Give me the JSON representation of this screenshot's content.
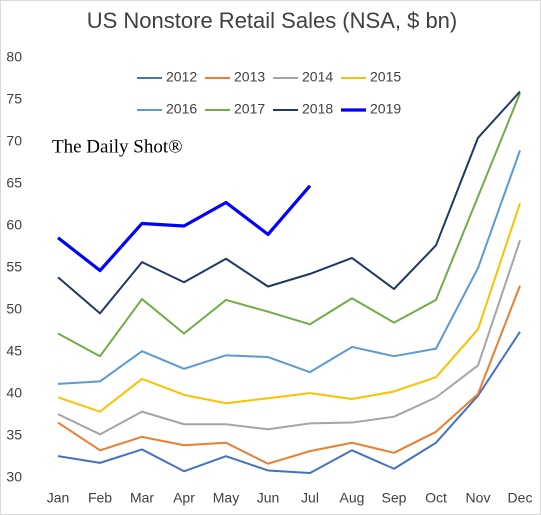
{
  "chart_data": {
    "type": "line",
    "title": "US Nonstore Retail Sales (NSA, $ bn)",
    "annotation": "The Daily Shot®",
    "categories": [
      "Jan",
      "Feb",
      "Mar",
      "Apr",
      "May",
      "Jun",
      "Jul",
      "Aug",
      "Sep",
      "Oct",
      "Nov",
      "Dec"
    ],
    "ylim": [
      30,
      80
    ],
    "yticks": [
      30,
      35,
      40,
      45,
      50,
      55,
      60,
      65,
      70,
      75,
      80
    ],
    "grid": false,
    "legend": "top",
    "series": [
      {
        "name": "2012",
        "color": "#4472c4",
        "line_width": 2,
        "values": [
          32.6,
          31.8,
          33.4,
          30.8,
          32.6,
          30.9,
          30.6,
          33.3,
          31.1,
          34.2,
          39.8,
          47.4
        ]
      },
      {
        "name": "2013",
        "color": "#ed7d31",
        "line_width": 2,
        "values": [
          36.6,
          33.3,
          34.9,
          33.9,
          34.2,
          31.7,
          33.2,
          34.2,
          33.0,
          35.5,
          40.0,
          52.9
        ]
      },
      {
        "name": "2014",
        "color": "#a5a5a5",
        "line_width": 2,
        "values": [
          37.6,
          35.2,
          37.9,
          36.4,
          36.4,
          35.8,
          36.5,
          36.6,
          37.3,
          39.6,
          43.4,
          58.3
        ]
      },
      {
        "name": "2015",
        "color": "#ffc000",
        "line_width": 2,
        "values": [
          39.6,
          37.9,
          41.8,
          39.9,
          38.9,
          39.5,
          40.1,
          39.4,
          40.3,
          42.0,
          47.7,
          62.7
        ]
      },
      {
        "name": "2016",
        "color": "#5b9bd5",
        "line_width": 2,
        "values": [
          41.2,
          41.5,
          45.1,
          43.0,
          44.6,
          44.4,
          42.6,
          45.6,
          44.5,
          45.4,
          55.0,
          69.0
        ]
      },
      {
        "name": "2017",
        "color": "#70ad47",
        "line_width": 2,
        "values": [
          47.2,
          44.5,
          51.3,
          47.2,
          51.2,
          49.8,
          48.3,
          51.4,
          48.5,
          51.2,
          63.5,
          75.8
        ]
      },
      {
        "name": "2018",
        "color": "#203864",
        "line_width": 2,
        "values": [
          53.9,
          49.6,
          55.7,
          53.3,
          56.1,
          52.8,
          54.3,
          56.2,
          52.5,
          57.7,
          70.5,
          76.0
        ]
      },
      {
        "name": "2019",
        "color": "#0000ff",
        "line_width": 3.2,
        "values": [
          58.6,
          54.7,
          60.3,
          60.0,
          62.8,
          59.0,
          64.8,
          null,
          null,
          null,
          null,
          null
        ]
      }
    ]
  }
}
